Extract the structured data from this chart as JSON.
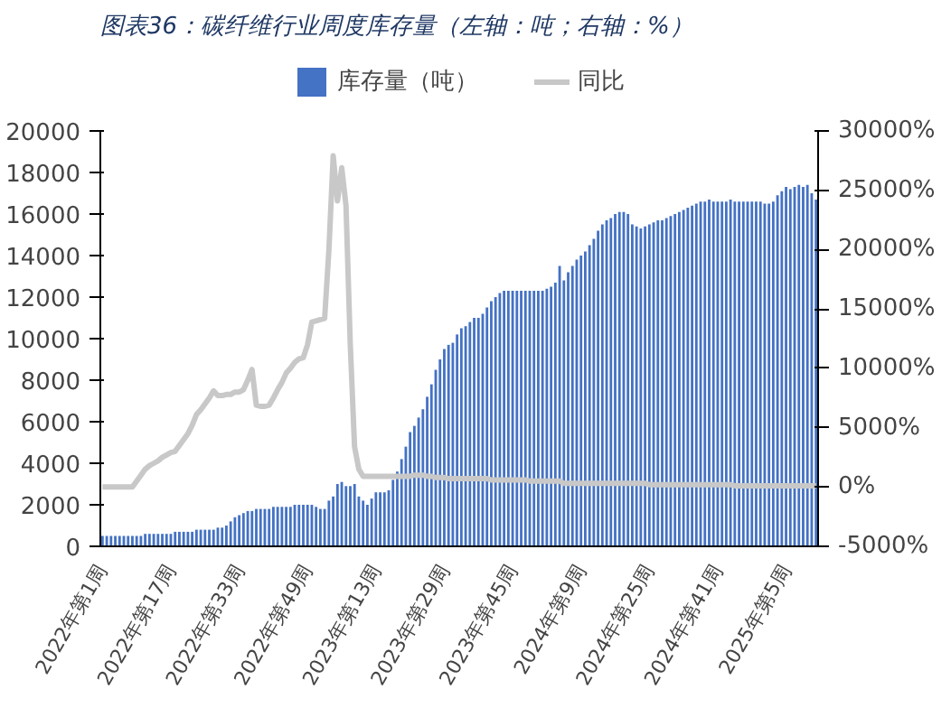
{
  "chart_data": {
    "type": "bar",
    "title": "图表36：碳纤维行业周度库存量（左轴：吨；右轴：%）",
    "categories": [
      "2022年第1周",
      null,
      null,
      null,
      null,
      null,
      null,
      null,
      null,
      null,
      null,
      null,
      null,
      null,
      null,
      null,
      "2022年第17周",
      null,
      null,
      null,
      null,
      null,
      null,
      null,
      null,
      null,
      null,
      null,
      null,
      null,
      null,
      null,
      "2022年第33周",
      null,
      null,
      null,
      null,
      null,
      null,
      null,
      null,
      null,
      null,
      null,
      null,
      null,
      null,
      null,
      "2022年第49周",
      null,
      null,
      null,
      null,
      null,
      null,
      null,
      null,
      null,
      null,
      null,
      null,
      null,
      null,
      null,
      "2023年第13周",
      null,
      null,
      null,
      null,
      null,
      null,
      null,
      null,
      null,
      null,
      null,
      null,
      null,
      null,
      null,
      "2023年第29周",
      null,
      null,
      null,
      null,
      null,
      null,
      null,
      null,
      null,
      null,
      null,
      null,
      null,
      null,
      null,
      "2023年第45周",
      null,
      null,
      null,
      null,
      null,
      null,
      null,
      null,
      null,
      null,
      null,
      null,
      null,
      null,
      null,
      "2024年第9周",
      null,
      null,
      null,
      null,
      null,
      null,
      null,
      null,
      null,
      null,
      null,
      null,
      null,
      null,
      null,
      "2024年第25周",
      null,
      null,
      null,
      null,
      null,
      null,
      null,
      null,
      null,
      null,
      null,
      null,
      null,
      null,
      null,
      "2024年第41周",
      null,
      null,
      null,
      null,
      null,
      null,
      null,
      null,
      null,
      null,
      null,
      null,
      null,
      null,
      null,
      "2025年第5周",
      null,
      null,
      null,
      null,
      null,
      null,
      null
    ],
    "series": [
      {
        "name": "库存量（吨）",
        "color": "#4472c4",
        "values": [
          500,
          500,
          500,
          500,
          500,
          500,
          500,
          500,
          500,
          500,
          600,
          600,
          600,
          600,
          600,
          600,
          600,
          700,
          700,
          700,
          700,
          700,
          800,
          800,
          800,
          800,
          800,
          900,
          900,
          1000,
          1200,
          1400,
          1500,
          1600,
          1700,
          1700,
          1800,
          1800,
          1800,
          1800,
          1900,
          1900,
          1900,
          1900,
          1900,
          2000,
          2000,
          2000,
          2000,
          2000,
          1900,
          1800,
          1800,
          2200,
          2400,
          3000,
          3100,
          2900,
          2900,
          3000,
          2400,
          2200,
          2000,
          2300,
          2600,
          2600,
          2600,
          2700,
          3200,
          3600,
          4200,
          4800,
          5500,
          5800,
          6200,
          6600,
          7200,
          7800,
          8500,
          9000,
          9500,
          9700,
          9800,
          10200,
          10500,
          10600,
          10800,
          11000,
          11000,
          11200,
          11500,
          11800,
          12000,
          12200,
          12300,
          12300,
          12300,
          12300,
          12300,
          12300,
          12300,
          12300,
          12300,
          12300,
          12400,
          12500,
          12700,
          13500,
          12800,
          13200,
          13500,
          13800,
          14000,
          14200,
          14500,
          14800,
          15200,
          15500,
          15700,
          15800,
          16000,
          16100,
          16100,
          16000,
          15500,
          15400,
          15300,
          15400,
          15500,
          15600,
          15700,
          15700,
          15800,
          15900,
          16000,
          16100,
          16200,
          16300,
          16400,
          16500,
          16600,
          16600,
          16700,
          16600,
          16600,
          16600,
          16600,
          16700,
          16600,
          16600,
          16600,
          16600,
          16600,
          16600,
          16600,
          16500,
          16500,
          16600,
          16900,
          17100,
          17300,
          17200,
          17300,
          17400,
          17300,
          17400,
          17000,
          16700
        ]
      },
      {
        "name": "同比",
        "type": "line",
        "axis": "y2",
        "color": "#c8c8c8",
        "values": [
          0,
          0,
          0,
          0,
          0,
          0,
          0,
          0,
          500,
          1000,
          1500,
          1800,
          2000,
          2200,
          2500,
          2700,
          2900,
          3000,
          3500,
          4000,
          4500,
          5200,
          6100,
          6500,
          7000,
          7500,
          8100,
          7700,
          7700,
          7800,
          7800,
          8000,
          8000,
          8200,
          9000,
          9900,
          6900,
          6800,
          6800,
          6900,
          7500,
          8200,
          8800,
          9600,
          10000,
          10500,
          10800,
          10900,
          12000,
          13900,
          14000,
          14100,
          14200,
          20000,
          27900,
          24100,
          26900,
          23700,
          12000,
          3400,
          1500,
          900,
          900,
          900,
          900,
          900,
          900,
          900,
          900,
          900,
          900,
          900,
          900,
          1000,
          1000,
          1000,
          900,
          900,
          800,
          800,
          800,
          700,
          700,
          700,
          700,
          700,
          700,
          700,
          700,
          700,
          700,
          600,
          600,
          600,
          600,
          600,
          600,
          600,
          600,
          600,
          500,
          500,
          500,
          500,
          500,
          500,
          500,
          500,
          300,
          300,
          300,
          300,
          300,
          300,
          300,
          300,
          300,
          300,
          300,
          300,
          300,
          300,
          300,
          300,
          300,
          300,
          300,
          300,
          200,
          200,
          200,
          200,
          200,
          200,
          200,
          200,
          200,
          200,
          200,
          200,
          200,
          200,
          200,
          200,
          200,
          200,
          200,
          200,
          100,
          100,
          100,
          100,
          100,
          100,
          100,
          100,
          100,
          100,
          100,
          100,
          100,
          100,
          100,
          100,
          100,
          100,
          100,
          100
        ]
      }
    ],
    "ylim": [
      0,
      20000
    ],
    "yticks": [
      0,
      2000,
      4000,
      6000,
      8000,
      10000,
      12000,
      14000,
      16000,
      18000,
      20000
    ],
    "y2lim": [
      -5000,
      30000
    ],
    "y2ticks": [
      {
        "value": -5000,
        "label": "-5000%"
      },
      {
        "value": 0,
        "label": "0%"
      },
      {
        "value": 5000,
        "label": "5000%"
      },
      {
        "value": 10000,
        "label": "10000%"
      },
      {
        "value": 15000,
        "label": "15000%"
      },
      {
        "value": 20000,
        "label": "20000%"
      },
      {
        "value": 25000,
        "label": "25000%"
      },
      {
        "value": 30000,
        "label": "30000%"
      }
    ],
    "grid": false,
    "legend": "top"
  }
}
